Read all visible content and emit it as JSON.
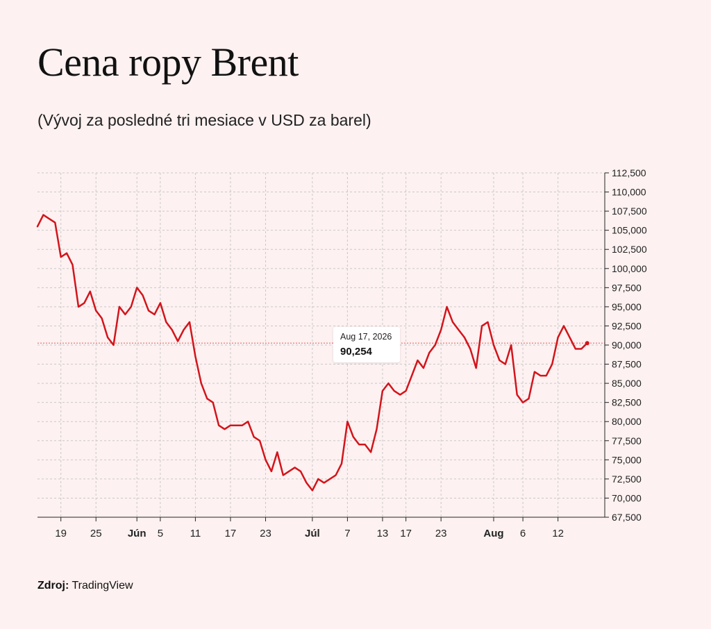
{
  "header": {
    "title": "Cena ropy Brent",
    "subtitle": "(Vývoj za posledné tri mesiace v USD za barel)"
  },
  "footer": {
    "source_label": "Zdroj:",
    "source_value": "TradingView"
  },
  "tooltip": {
    "date": "Aug 17, 2026",
    "value": "90,254"
  },
  "colors": {
    "background": "#fdf1f1",
    "line": "#d3141b",
    "grid": "#c9c9c9",
    "reference_line": "#f08a8a"
  },
  "chart_data": {
    "type": "line",
    "title": "Cena ropy Brent",
    "subtitle": "(Vývoj za posledné tri mesiace v USD za barel)",
    "xlabel": "",
    "ylabel": "",
    "x_range": [
      "2026-05-15",
      "2026-08-20"
    ],
    "ylim": [
      67500,
      112500
    ],
    "y_ticks": [
      112500,
      110000,
      107500,
      105000,
      102500,
      100000,
      97500,
      95000,
      92500,
      90000,
      87500,
      85000,
      82500,
      80000,
      77500,
      75000,
      72500,
      70000,
      67500
    ],
    "y_tick_labels": [
      "112,500",
      "110,000",
      "107,500",
      "105,000",
      "102,500",
      "100,000",
      "97,500",
      "95,000",
      "92,500",
      "90,000",
      "87,500",
      "85,000",
      "82,500",
      "80,000",
      "77,500",
      "75,000",
      "72,500",
      "70,000",
      "67,500"
    ],
    "x_ticks": [
      {
        "date": "2026-05-19",
        "label": "19",
        "bold": false
      },
      {
        "date": "2026-05-25",
        "label": "25",
        "bold": false
      },
      {
        "date": "2026-06-01",
        "label": "Jún",
        "bold": true
      },
      {
        "date": "2026-06-05",
        "label": "5",
        "bold": false
      },
      {
        "date": "2026-06-11",
        "label": "11",
        "bold": false
      },
      {
        "date": "2026-06-17",
        "label": "17",
        "bold": false
      },
      {
        "date": "2026-06-23",
        "label": "23",
        "bold": false
      },
      {
        "date": "2026-07-01",
        "label": "Júl",
        "bold": true
      },
      {
        "date": "2026-07-07",
        "label": "7",
        "bold": false
      },
      {
        "date": "2026-07-13",
        "label": "13",
        "bold": false
      },
      {
        "date": "2026-07-17",
        "label": "17",
        "bold": false
      },
      {
        "date": "2026-07-23",
        "label": "23",
        "bold": false
      },
      {
        "date": "2026-08-01",
        "label": "Aug",
        "bold": true
      },
      {
        "date": "2026-08-06",
        "label": "6",
        "bold": false
      },
      {
        "date": "2026-08-12",
        "label": "12",
        "bold": false
      }
    ],
    "grid": true,
    "reference_line": {
      "y": 90254
    },
    "last_point": {
      "date": "2026-08-17",
      "value": 90254
    },
    "series": [
      {
        "x": [
          "2026-05-15",
          "2026-05-16",
          "2026-05-17",
          "2026-05-18",
          "2026-05-19",
          "2026-05-20",
          "2026-05-21",
          "2026-05-22",
          "2026-05-23",
          "2026-05-24",
          "2026-05-25",
          "2026-05-26",
          "2026-05-27",
          "2026-05-28",
          "2026-05-29",
          "2026-05-30",
          "2026-05-31",
          "2026-06-01",
          "2026-06-02",
          "2026-06-03",
          "2026-06-04",
          "2026-06-05",
          "2026-06-06",
          "2026-06-07",
          "2026-06-08",
          "2026-06-09",
          "2026-06-10",
          "2026-06-11",
          "2026-06-12",
          "2026-06-13",
          "2026-06-14",
          "2026-06-15",
          "2026-06-16",
          "2026-06-17",
          "2026-06-18",
          "2026-06-19",
          "2026-06-20",
          "2026-06-21",
          "2026-06-22",
          "2026-06-23",
          "2026-06-24",
          "2026-06-25",
          "2026-06-26",
          "2026-06-27",
          "2026-06-28",
          "2026-06-29",
          "2026-06-30",
          "2026-07-01",
          "2026-07-02",
          "2026-07-03",
          "2026-07-04",
          "2026-07-05",
          "2026-07-06",
          "2026-07-07",
          "2026-07-08",
          "2026-07-09",
          "2026-07-10",
          "2026-07-11",
          "2026-07-12",
          "2026-07-13",
          "2026-07-14",
          "2026-07-15",
          "2026-07-16",
          "2026-07-17",
          "2026-07-18",
          "2026-07-19",
          "2026-07-20",
          "2026-07-21",
          "2026-07-22",
          "2026-07-23",
          "2026-07-24",
          "2026-07-25",
          "2026-07-26",
          "2026-07-27",
          "2026-07-28",
          "2026-07-29",
          "2026-07-30",
          "2026-07-31",
          "2026-08-01",
          "2026-08-02",
          "2026-08-03",
          "2026-08-04",
          "2026-08-05",
          "2026-08-06",
          "2026-08-07",
          "2026-08-08",
          "2026-08-09",
          "2026-08-10",
          "2026-08-11",
          "2026-08-12",
          "2026-08-13",
          "2026-08-14",
          "2026-08-15",
          "2026-08-16",
          "2026-08-17"
        ],
        "values": [
          105500,
          107000,
          106500,
          106000,
          101500,
          102000,
          100500,
          95000,
          95500,
          97000,
          94500,
          93500,
          91000,
          90000,
          95000,
          94000,
          95000,
          97500,
          96500,
          94500,
          94000,
          95500,
          93000,
          92000,
          90500,
          92000,
          93000,
          88500,
          85000,
          83000,
          82500,
          79500,
          79000,
          79500,
          79500,
          79500,
          80000,
          78000,
          77500,
          75000,
          73500,
          76000,
          73000,
          73500,
          74000,
          73500,
          72000,
          71000,
          72500,
          72000,
          72500,
          73000,
          74500,
          80000,
          78000,
          77000,
          77000,
          76000,
          79000,
          84000,
          85000,
          84000,
          83500,
          84000,
          86000,
          88000,
          87000,
          89000,
          90000,
          92000,
          95000,
          93000,
          92000,
          91000,
          89500,
          87000,
          92500,
          93000,
          90000,
          88000,
          87500,
          90000,
          83500,
          82500,
          83000,
          86500,
          86000,
          86000,
          87500,
          91000,
          92500,
          91000,
          89500,
          89500,
          90254
        ]
      }
    ]
  }
}
